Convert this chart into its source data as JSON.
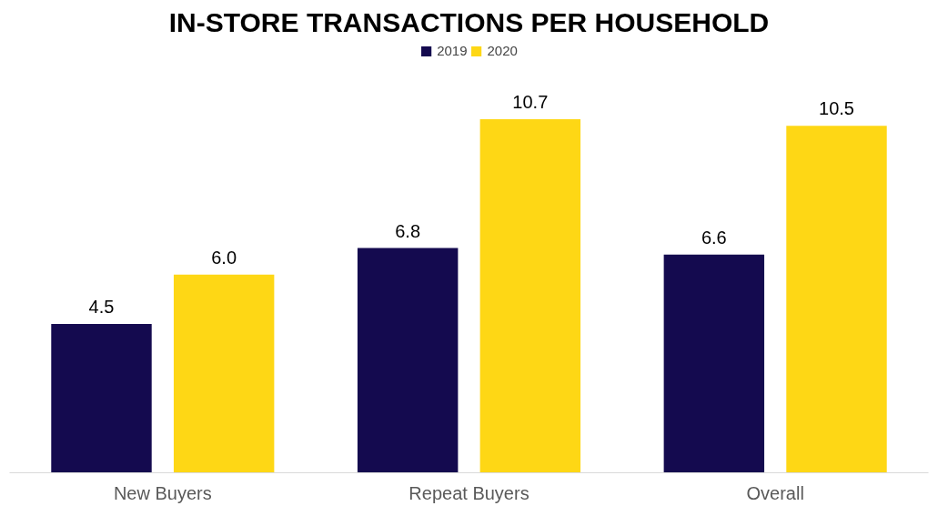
{
  "chart_data": {
    "type": "bar",
    "title": "IN-STORE TRANSACTIONS PER HOUSEHOLD",
    "categories": [
      "New Buyers",
      "Repeat Buyers",
      "Overall"
    ],
    "series": [
      {
        "name": "2019",
        "color": "#140a4f",
        "values": [
          4.5,
          6.8,
          6.6
        ],
        "value_labels": [
          "4.5",
          "6.8",
          "6.6"
        ]
      },
      {
        "name": "2020",
        "color": "#fed715",
        "values": [
          6.0,
          10.7,
          10.5
        ],
        "value_labels": [
          "6.0",
          "10.7",
          "10.5"
        ]
      }
    ],
    "legend": "top"
  }
}
